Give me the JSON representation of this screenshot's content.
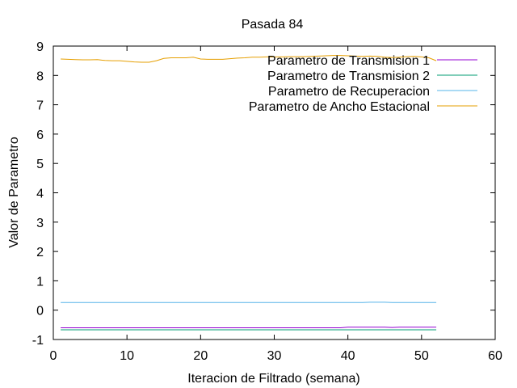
{
  "chart_data": {
    "type": "line",
    "title": "Pasada 84",
    "xlabel": "Iteracion de Filtrado (semana)",
    "ylabel": "Valor de Parametro",
    "xlim": [
      0,
      60
    ],
    "ylim": [
      -1,
      9
    ],
    "xticks": [
      "0",
      "10",
      "20",
      "30",
      "40",
      "50",
      "60"
    ],
    "yticks": [
      "-1",
      "0",
      "1",
      "2",
      "3",
      "4",
      "5",
      "6",
      "7",
      "8",
      "9"
    ],
    "grid": false,
    "legend_position": "top-right",
    "x": [
      1,
      2,
      3,
      4,
      5,
      6,
      7,
      8,
      9,
      10,
      11,
      12,
      13,
      14,
      15,
      16,
      17,
      18,
      19,
      20,
      21,
      22,
      23,
      24,
      25,
      26,
      27,
      28,
      29,
      30,
      31,
      32,
      33,
      34,
      35,
      36,
      37,
      38,
      39,
      40,
      41,
      42,
      43,
      44,
      45,
      46,
      47,
      48,
      49,
      50,
      51,
      52
    ],
    "series": [
      {
        "name": "Parametro de Transmision 1",
        "color": "#9400d3",
        "values": [
          -0.6,
          -0.6,
          -0.6,
          -0.6,
          -0.6,
          -0.6,
          -0.6,
          -0.6,
          -0.6,
          -0.6,
          -0.6,
          -0.6,
          -0.6,
          -0.6,
          -0.6,
          -0.6,
          -0.6,
          -0.6,
          -0.6,
          -0.6,
          -0.6,
          -0.6,
          -0.6,
          -0.6,
          -0.6,
          -0.6,
          -0.6,
          -0.6,
          -0.6,
          -0.6,
          -0.6,
          -0.6,
          -0.6,
          -0.6,
          -0.6,
          -0.6,
          -0.6,
          -0.6,
          -0.6,
          -0.58,
          -0.58,
          -0.58,
          -0.58,
          -0.58,
          -0.58,
          -0.59,
          -0.58,
          -0.58,
          -0.58,
          -0.58,
          -0.58,
          -0.58
        ]
      },
      {
        "name": "Parametro de Transmision 2",
        "color": "#009e73",
        "values": [
          -0.67,
          -0.67,
          -0.67,
          -0.67,
          -0.67,
          -0.67,
          -0.67,
          -0.67,
          -0.67,
          -0.67,
          -0.67,
          -0.67,
          -0.67,
          -0.67,
          -0.67,
          -0.67,
          -0.67,
          -0.67,
          -0.67,
          -0.67,
          -0.67,
          -0.67,
          -0.67,
          -0.67,
          -0.67,
          -0.67,
          -0.67,
          -0.67,
          -0.67,
          -0.67,
          -0.67,
          -0.67,
          -0.67,
          -0.67,
          -0.67,
          -0.67,
          -0.67,
          -0.67,
          -0.67,
          -0.67,
          -0.67,
          -0.67,
          -0.67,
          -0.67,
          -0.67,
          -0.67,
          -0.67,
          -0.67,
          -0.67,
          -0.67,
          -0.67,
          -0.67
        ]
      },
      {
        "name": "Parametro de Recuperacion",
        "color": "#56b4e9",
        "values": [
          0.26,
          0.26,
          0.26,
          0.26,
          0.26,
          0.26,
          0.26,
          0.26,
          0.26,
          0.26,
          0.26,
          0.26,
          0.26,
          0.26,
          0.26,
          0.26,
          0.26,
          0.26,
          0.26,
          0.26,
          0.26,
          0.26,
          0.26,
          0.26,
          0.26,
          0.26,
          0.26,
          0.26,
          0.26,
          0.26,
          0.26,
          0.26,
          0.26,
          0.26,
          0.26,
          0.26,
          0.26,
          0.26,
          0.26,
          0.26,
          0.26,
          0.26,
          0.27,
          0.27,
          0.27,
          0.26,
          0.26,
          0.26,
          0.26,
          0.26,
          0.26,
          0.26
        ]
      },
      {
        "name": "Parametro de Ancho Estacional",
        "color": "#e69f00",
        "values": [
          8.56,
          8.55,
          8.54,
          8.53,
          8.53,
          8.54,
          8.51,
          8.5,
          8.5,
          8.48,
          8.46,
          8.45,
          8.45,
          8.5,
          8.58,
          8.6,
          8.6,
          8.6,
          8.62,
          8.56,
          8.55,
          8.55,
          8.55,
          8.57,
          8.59,
          8.6,
          8.62,
          8.62,
          8.63,
          8.63,
          8.63,
          8.64,
          8.64,
          8.64,
          8.65,
          8.66,
          8.67,
          8.68,
          8.68,
          8.67,
          8.66,
          8.65,
          8.66,
          8.65,
          8.62,
          8.61,
          8.62,
          8.64,
          8.65,
          8.63,
          8.6,
          8.5
        ]
      }
    ]
  }
}
